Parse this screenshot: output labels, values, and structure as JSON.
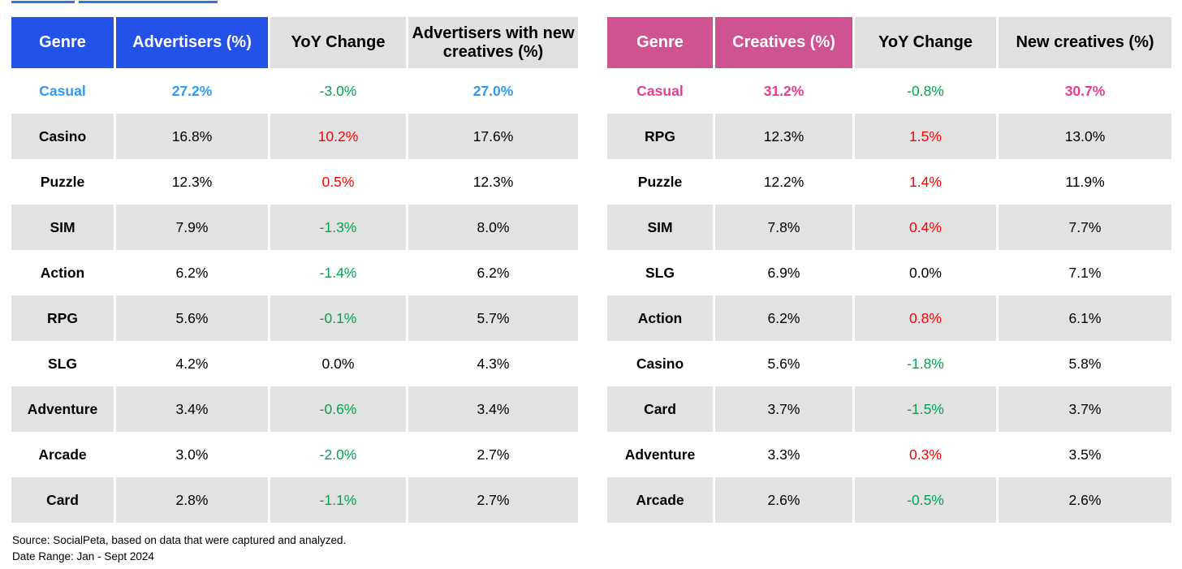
{
  "colors": {
    "left_header_bg": "#2452E8",
    "right_header_bg": "#CE5391",
    "left_highlight": "#2E9BF3",
    "right_highlight": "#E23D90",
    "up_red": "#FB0000",
    "down_green": "#00A44F",
    "alt_row_bg": "#E2E2E2",
    "header_gray_bg": "#E0E0E0",
    "link_blue": "#2878DA"
  },
  "chart_data": [
    {
      "type": "table",
      "columns": [
        "Genre",
        "Advertisers (%)",
        "YoY Change",
        "Advertisers with new creatives (%)"
      ],
      "highlight_row": 0,
      "rows": [
        {
          "genre": "Casual",
          "value": "27.2%",
          "yoy": "-3.0%",
          "trend": "down",
          "new_value": "27.0%"
        },
        {
          "genre": "Casino",
          "value": "16.8%",
          "yoy": "10.2%",
          "trend": "up",
          "new_value": "17.6%"
        },
        {
          "genre": "Puzzle",
          "value": "12.3%",
          "yoy": "0.5%",
          "trend": "up",
          "new_value": "12.3%"
        },
        {
          "genre": "SIM",
          "value": "7.9%",
          "yoy": "-1.3%",
          "trend": "down",
          "new_value": "8.0%"
        },
        {
          "genre": "Action",
          "value": "6.2%",
          "yoy": "-1.4%",
          "trend": "down",
          "new_value": "6.2%"
        },
        {
          "genre": "RPG",
          "value": "5.6%",
          "yoy": "-0.1%",
          "trend": "down",
          "new_value": "5.7%"
        },
        {
          "genre": "SLG",
          "value": "4.2%",
          "yoy": "0.0%",
          "trend": "flat",
          "new_value": "4.3%"
        },
        {
          "genre": "Adventure",
          "value": "3.4%",
          "yoy": "-0.6%",
          "trend": "down",
          "new_value": "3.4%"
        },
        {
          "genre": "Arcade",
          "value": "3.0%",
          "yoy": "-2.0%",
          "trend": "down",
          "new_value": "2.7%"
        },
        {
          "genre": "Card",
          "value": "2.8%",
          "yoy": "-1.1%",
          "trend": "down",
          "new_value": "2.7%"
        }
      ]
    },
    {
      "type": "table",
      "columns": [
        "Genre",
        "Creatives (%)",
        "YoY Change",
        "New creatives (%)"
      ],
      "highlight_row": 0,
      "rows": [
        {
          "genre": "Casual",
          "value": "31.2%",
          "yoy": "-0.8%",
          "trend": "down",
          "new_value": "30.7%"
        },
        {
          "genre": "RPG",
          "value": "12.3%",
          "yoy": "1.5%",
          "trend": "up",
          "new_value": "13.0%"
        },
        {
          "genre": "Puzzle",
          "value": "12.2%",
          "yoy": "1.4%",
          "trend": "up",
          "new_value": "11.9%"
        },
        {
          "genre": "SIM",
          "value": "7.8%",
          "yoy": "0.4%",
          "trend": "up",
          "new_value": "7.7%"
        },
        {
          "genre": "SLG",
          "value": "6.9%",
          "yoy": "0.0%",
          "trend": "flat",
          "new_value": "7.1%"
        },
        {
          "genre": "Action",
          "value": "6.2%",
          "yoy": "0.8%",
          "trend": "up",
          "new_value": "6.1%"
        },
        {
          "genre": "Casino",
          "value": "5.6%",
          "yoy": "-1.8%",
          "trend": "down",
          "new_value": "5.8%"
        },
        {
          "genre": "Card",
          "value": "3.7%",
          "yoy": "-1.5%",
          "trend": "down",
          "new_value": "3.7%"
        },
        {
          "genre": "Adventure",
          "value": "3.3%",
          "yoy": "0.3%",
          "trend": "up",
          "new_value": "3.5%"
        },
        {
          "genre": "Arcade",
          "value": "2.6%",
          "yoy": "-0.5%",
          "trend": "down",
          "new_value": "2.6%"
        }
      ]
    }
  ],
  "footer": {
    "source": "Source: SocialPeta, based on data that were captured and analyzed.",
    "date_range": "Date Range: Jan - Sept 2024"
  }
}
